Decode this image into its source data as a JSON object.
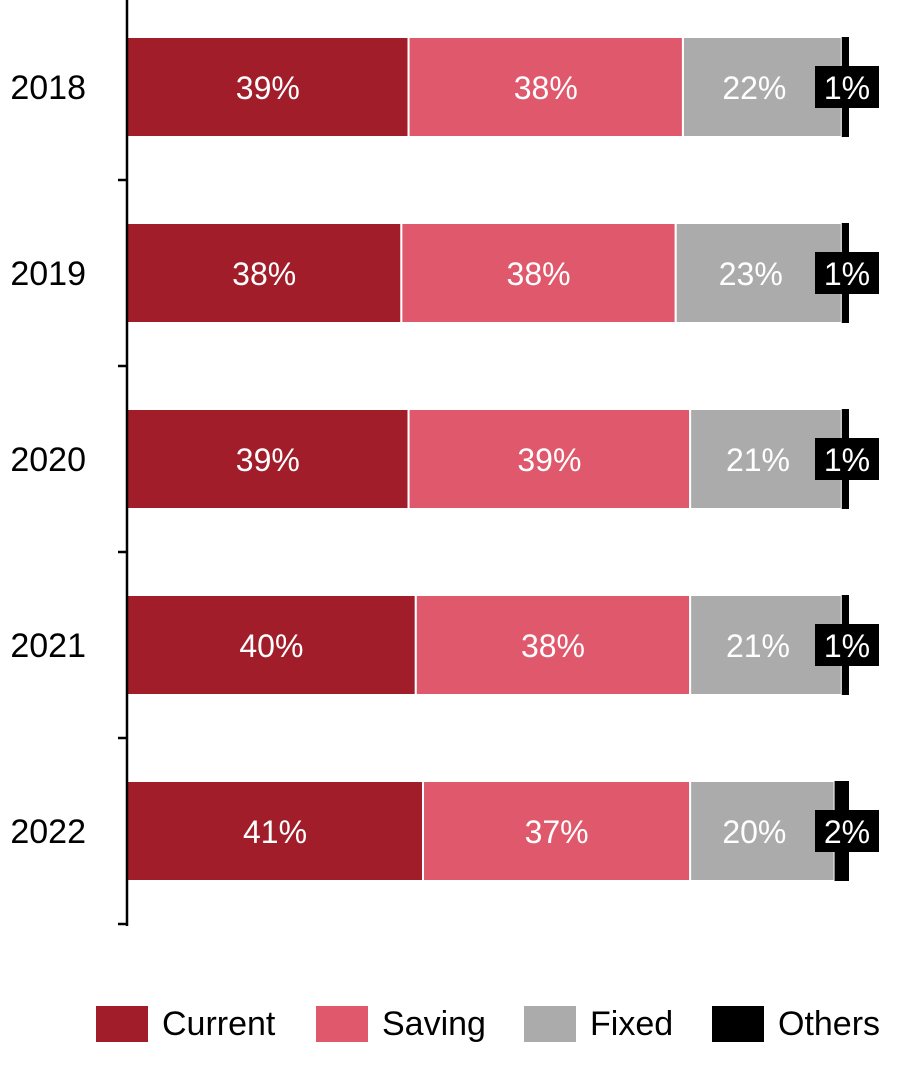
{
  "chart_data": {
    "type": "bar",
    "orientation": "horizontal",
    "stacked": true,
    "percent": true,
    "categories": [
      "2018",
      "2019",
      "2020",
      "2021",
      "2022"
    ],
    "series": [
      {
        "name": "Current",
        "values": [
          39,
          38,
          39,
          40,
          41
        ],
        "labels": [
          "39%",
          "38%",
          "39%",
          "40%",
          "41%"
        ],
        "color": "#a11d2a"
      },
      {
        "name": "Saving",
        "values": [
          38,
          38,
          39,
          38,
          37
        ],
        "labels": [
          "38%",
          "38%",
          "39%",
          "38%",
          "37%"
        ],
        "color": "#e0586c"
      },
      {
        "name": "Fixed",
        "values": [
          22,
          23,
          21,
          21,
          20
        ],
        "labels": [
          "22%",
          "23%",
          "21%",
          "21%",
          "20%"
        ],
        "color": "#ababab"
      },
      {
        "name": "Others",
        "values": [
          1,
          1,
          1,
          1,
          2
        ],
        "labels": [
          "1%",
          "1%",
          "1%",
          "1%",
          "2%"
        ],
        "color": "#000000"
      }
    ],
    "xlim": [
      0,
      100
    ],
    "grid": false,
    "legend_position": "bottom"
  }
}
